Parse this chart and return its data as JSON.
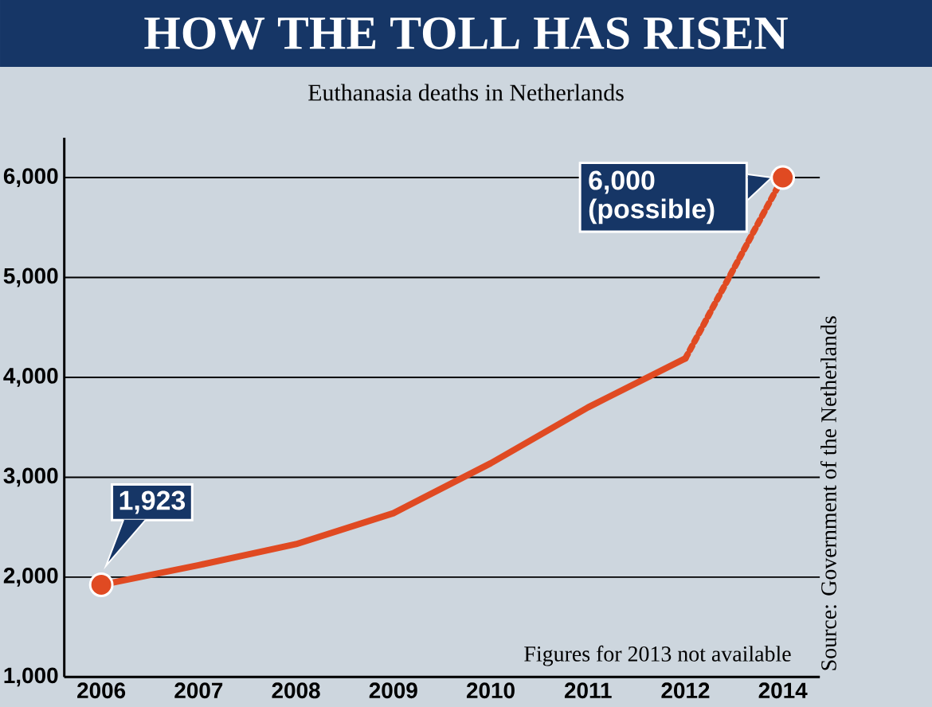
{
  "chart_data": {
    "type": "line",
    "title": "HOW THE TOLL HAS RISEN",
    "subtitle": "Euthanasia deaths in Netherlands",
    "categories": [
      "2006",
      "2007",
      "2008",
      "2009",
      "2010",
      "2011",
      "2012",
      "2014"
    ],
    "series": [
      {
        "type": "line",
        "color": "#e04a22",
        "line_style": "solid",
        "values": [
          1923,
          2120,
          2330,
          2640,
          3140,
          3700,
          4190,
          null
        ]
      },
      {
        "type": "line",
        "color": "#e04a22",
        "line_style": "dashed",
        "values": [
          null,
          null,
          null,
          null,
          null,
          null,
          4190,
          6000
        ]
      },
      {
        "type": "scatter",
        "color": "#e04a22",
        "marker": "circle",
        "values": [
          1923,
          null,
          null,
          null,
          null,
          null,
          null,
          6000
        ]
      }
    ],
    "ylim": [
      1000,
      6400
    ],
    "yticks": [
      {
        "value": 1000,
        "label": "1,000"
      },
      {
        "value": 2000,
        "label": "2,000"
      },
      {
        "value": 3000,
        "label": "3,000"
      },
      {
        "value": 4000,
        "label": "4,000"
      },
      {
        "value": 5000,
        "label": "5,000"
      },
      {
        "value": 6000,
        "label": "6,000"
      }
    ],
    "grid": "y",
    "annotations": [
      {
        "text": "1,923",
        "x": "2006",
        "y": 1923
      },
      {
        "text": "6,000 (possible)",
        "x": "2014",
        "y": 6000
      },
      "Figures for 2013 not available",
      "Source: Government of the Netherlands"
    ]
  }
}
